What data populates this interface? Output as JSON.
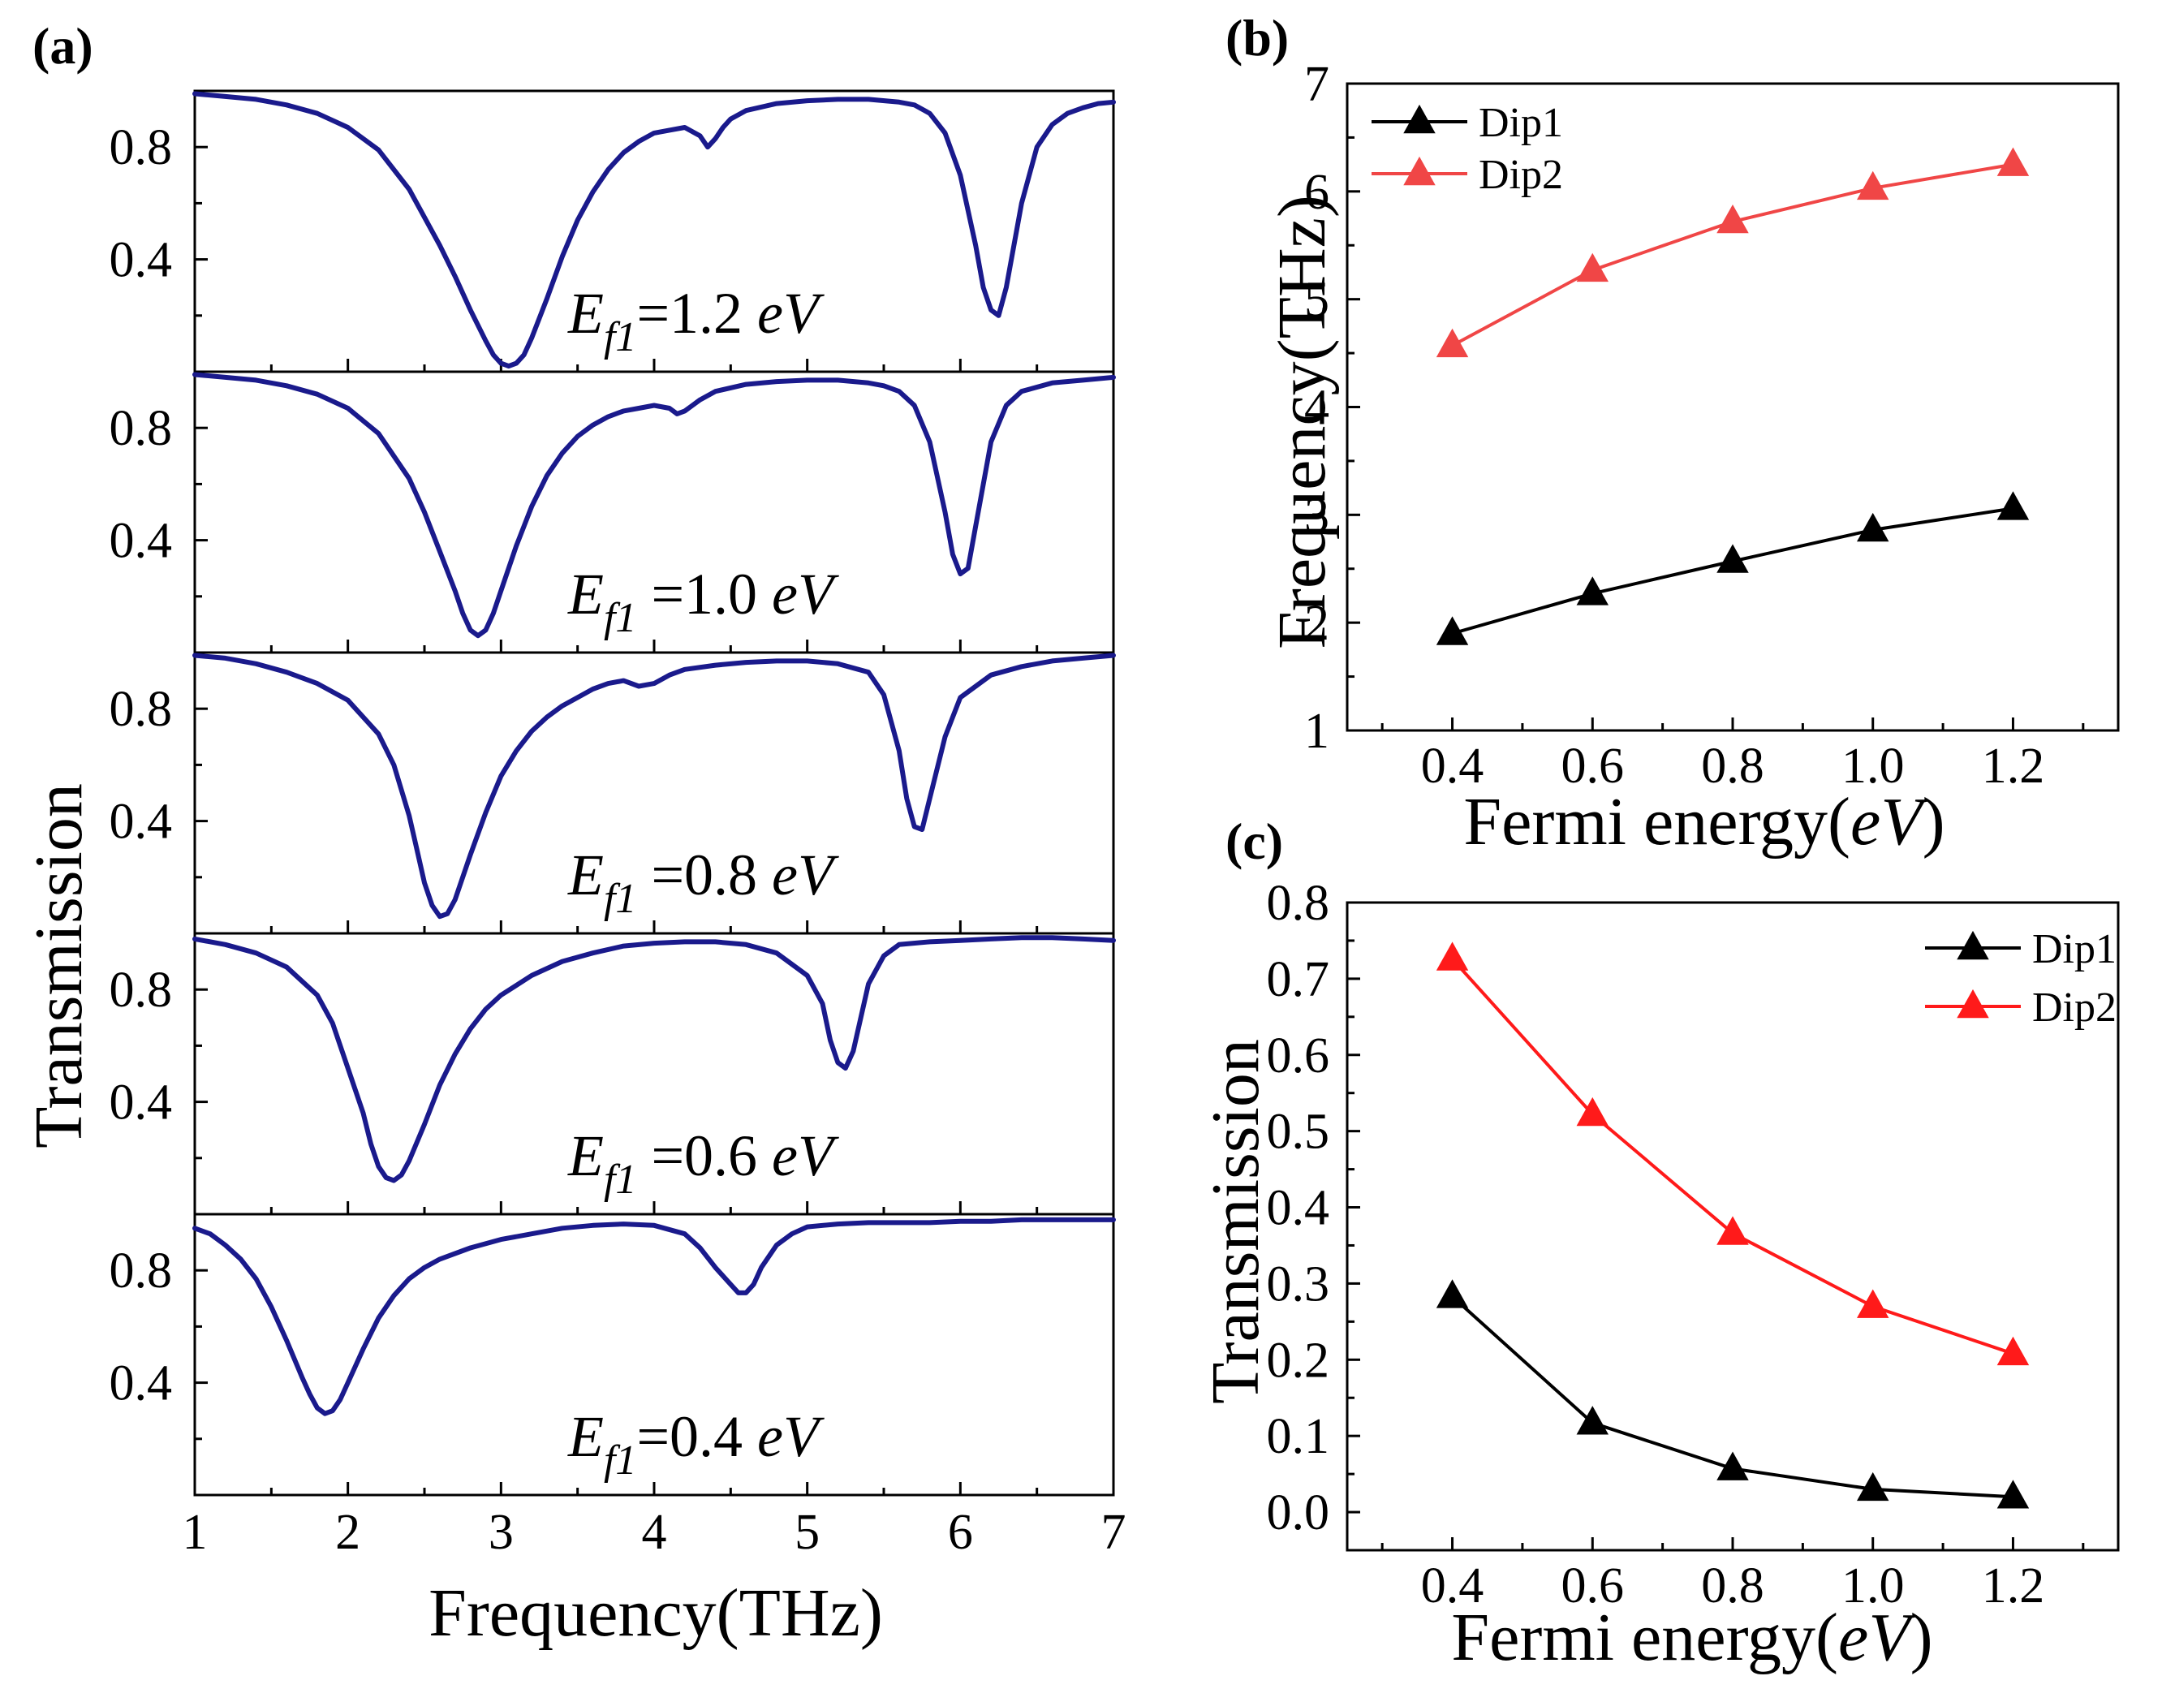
{
  "chart_data": [
    {
      "panel": "(a)",
      "type": "line",
      "xlabel": "Frequency(THz)",
      "ylabel": "Transmission",
      "xlim": [
        1,
        7
      ],
      "xticks": [
        "1",
        "2",
        "3",
        "4",
        "5",
        "6",
        "7"
      ],
      "ylim": [
        0,
        1
      ],
      "ytick_values": [
        0.4,
        0.8
      ],
      "ytick_labels": [
        "0.4",
        "0.8"
      ],
      "color": "#1a1a8c",
      "subplots": [
        {
          "annotation": {
            "symbol": "E",
            "sub": "f1",
            "text": "=1.2 ",
            "unit": "eV"
          },
          "x": [
            1.0,
            1.2,
            1.4,
            1.6,
            1.8,
            2.0,
            2.2,
            2.4,
            2.6,
            2.7,
            2.8,
            2.9,
            2.95,
            3.0,
            3.05,
            3.1,
            3.15,
            3.2,
            3.3,
            3.4,
            3.5,
            3.6,
            3.7,
            3.8,
            3.9,
            4.0,
            4.1,
            4.2,
            4.3,
            4.35,
            4.4,
            4.45,
            4.5,
            4.6,
            4.8,
            5.0,
            5.2,
            5.4,
            5.6,
            5.7,
            5.8,
            5.9,
            6.0,
            6.1,
            6.15,
            6.2,
            6.25,
            6.3,
            6.4,
            6.5,
            6.6,
            6.7,
            6.8,
            6.9,
            7.0
          ],
          "y": [
            0.99,
            0.98,
            0.97,
            0.95,
            0.92,
            0.87,
            0.79,
            0.65,
            0.45,
            0.34,
            0.22,
            0.11,
            0.06,
            0.03,
            0.02,
            0.03,
            0.06,
            0.12,
            0.26,
            0.41,
            0.54,
            0.64,
            0.72,
            0.78,
            0.82,
            0.85,
            0.86,
            0.87,
            0.84,
            0.8,
            0.83,
            0.87,
            0.9,
            0.93,
            0.955,
            0.965,
            0.97,
            0.97,
            0.96,
            0.95,
            0.92,
            0.85,
            0.7,
            0.45,
            0.3,
            0.22,
            0.2,
            0.3,
            0.6,
            0.8,
            0.88,
            0.92,
            0.94,
            0.955,
            0.96
          ]
        },
        {
          "annotation": {
            "symbol": "E",
            "sub": "f1",
            "text": " =1.0 ",
            "unit": "eV"
          },
          "x": [
            1.0,
            1.2,
            1.4,
            1.6,
            1.8,
            2.0,
            2.2,
            2.4,
            2.5,
            2.6,
            2.7,
            2.75,
            2.8,
            2.85,
            2.9,
            2.95,
            3.0,
            3.1,
            3.2,
            3.3,
            3.4,
            3.5,
            3.6,
            3.7,
            3.8,
            3.9,
            4.0,
            4.1,
            4.15,
            4.2,
            4.25,
            4.3,
            4.4,
            4.6,
            4.8,
            5.0,
            5.2,
            5.4,
            5.5,
            5.6,
            5.7,
            5.8,
            5.9,
            5.95,
            6.0,
            6.05,
            6.1,
            6.2,
            6.3,
            6.4,
            6.6,
            6.8,
            7.0
          ],
          "y": [
            0.99,
            0.98,
            0.97,
            0.95,
            0.92,
            0.87,
            0.78,
            0.62,
            0.5,
            0.36,
            0.22,
            0.14,
            0.08,
            0.06,
            0.08,
            0.14,
            0.22,
            0.38,
            0.52,
            0.63,
            0.71,
            0.77,
            0.81,
            0.84,
            0.86,
            0.87,
            0.88,
            0.87,
            0.85,
            0.86,
            0.88,
            0.9,
            0.93,
            0.955,
            0.965,
            0.97,
            0.97,
            0.96,
            0.95,
            0.93,
            0.88,
            0.75,
            0.5,
            0.35,
            0.28,
            0.3,
            0.45,
            0.75,
            0.88,
            0.93,
            0.96,
            0.97,
            0.98
          ]
        },
        {
          "annotation": {
            "symbol": "E",
            "sub": "f1",
            "text": " =0.8 ",
            "unit": "eV"
          },
          "x": [
            1.0,
            1.2,
            1.4,
            1.6,
            1.8,
            2.0,
            2.2,
            2.3,
            2.4,
            2.45,
            2.5,
            2.55,
            2.6,
            2.65,
            2.7,
            2.8,
            2.9,
            3.0,
            3.1,
            3.2,
            3.3,
            3.4,
            3.5,
            3.6,
            3.7,
            3.8,
            3.9,
            4.0,
            4.1,
            4.2,
            4.4,
            4.6,
            4.8,
            5.0,
            5.2,
            5.4,
            5.5,
            5.6,
            5.65,
            5.7,
            5.75,
            5.8,
            5.9,
            6.0,
            6.2,
            6.4,
            6.6,
            6.8,
            7.0
          ],
          "y": [
            0.99,
            0.98,
            0.96,
            0.93,
            0.89,
            0.83,
            0.71,
            0.6,
            0.42,
            0.3,
            0.18,
            0.1,
            0.06,
            0.07,
            0.12,
            0.28,
            0.43,
            0.56,
            0.65,
            0.72,
            0.77,
            0.81,
            0.84,
            0.87,
            0.89,
            0.9,
            0.88,
            0.89,
            0.92,
            0.94,
            0.955,
            0.965,
            0.97,
            0.97,
            0.96,
            0.93,
            0.85,
            0.65,
            0.48,
            0.38,
            0.37,
            0.48,
            0.7,
            0.84,
            0.92,
            0.95,
            0.97,
            0.98,
            0.99
          ]
        },
        {
          "annotation": {
            "symbol": "E",
            "sub": "f1",
            "text": " =0.6 ",
            "unit": "eV"
          },
          "x": [
            1.0,
            1.2,
            1.4,
            1.6,
            1.8,
            1.9,
            2.0,
            2.1,
            2.15,
            2.2,
            2.25,
            2.3,
            2.35,
            2.4,
            2.5,
            2.6,
            2.7,
            2.8,
            2.9,
            3.0,
            3.2,
            3.4,
            3.6,
            3.8,
            4.0,
            4.2,
            4.4,
            4.6,
            4.8,
            5.0,
            5.1,
            5.15,
            5.2,
            5.25,
            5.3,
            5.35,
            5.4,
            5.5,
            5.6,
            5.8,
            6.0,
            6.2,
            6.4,
            6.6,
            6.8,
            7.0
          ],
          "y": [
            0.98,
            0.96,
            0.93,
            0.88,
            0.78,
            0.68,
            0.52,
            0.36,
            0.25,
            0.17,
            0.13,
            0.12,
            0.14,
            0.19,
            0.32,
            0.46,
            0.57,
            0.66,
            0.73,
            0.78,
            0.85,
            0.9,
            0.93,
            0.955,
            0.965,
            0.97,
            0.97,
            0.96,
            0.93,
            0.85,
            0.75,
            0.62,
            0.54,
            0.52,
            0.58,
            0.7,
            0.82,
            0.92,
            0.96,
            0.97,
            0.975,
            0.98,
            0.985,
            0.985,
            0.98,
            0.975
          ]
        },
        {
          "annotation": {
            "symbol": "E",
            "sub": "f1",
            "text": "=0.4 ",
            "unit": "eV"
          },
          "x": [
            1.0,
            1.1,
            1.2,
            1.3,
            1.4,
            1.5,
            1.6,
            1.7,
            1.75,
            1.8,
            1.85,
            1.9,
            1.95,
            2.0,
            2.1,
            2.2,
            2.3,
            2.4,
            2.5,
            2.6,
            2.8,
            3.0,
            3.2,
            3.4,
            3.6,
            3.8,
            4.0,
            4.2,
            4.3,
            4.4,
            4.5,
            4.55,
            4.6,
            4.65,
            4.7,
            4.8,
            4.9,
            5.0,
            5.2,
            5.4,
            5.6,
            5.8,
            6.0,
            6.2,
            6.4,
            6.6,
            6.8,
            7.0
          ],
          "y": [
            0.95,
            0.93,
            0.89,
            0.84,
            0.77,
            0.67,
            0.55,
            0.42,
            0.36,
            0.31,
            0.29,
            0.3,
            0.34,
            0.4,
            0.52,
            0.63,
            0.71,
            0.77,
            0.81,
            0.84,
            0.88,
            0.91,
            0.93,
            0.95,
            0.96,
            0.965,
            0.96,
            0.93,
            0.88,
            0.81,
            0.75,
            0.72,
            0.72,
            0.75,
            0.81,
            0.89,
            0.93,
            0.955,
            0.965,
            0.97,
            0.97,
            0.97,
            0.975,
            0.975,
            0.98,
            0.98,
            0.98,
            0.98
          ]
        }
      ]
    },
    {
      "panel": "(b)",
      "type": "line",
      "xlabel": "Fermi energy(",
      "xlabel_unit": "eV",
      "xlabel_close": ")",
      "ylabel": "Frequency(THz)",
      "xlim": [
        0.25,
        1.35
      ],
      "ylim": [
        1,
        7
      ],
      "xticks": [
        "0.4",
        "0.6",
        "0.8",
        "1.0",
        "1.2"
      ],
      "xtick_values": [
        0.4,
        0.6,
        0.8,
        1.0,
        1.2
      ],
      "yticks": [
        "1",
        "2",
        "3",
        "4",
        "5",
        "6",
        "7"
      ],
      "ytick_values": [
        1,
        2,
        3,
        4,
        5,
        6,
        7
      ],
      "legend_position": "top-left",
      "series": [
        {
          "name": "Dip1",
          "color": "#000000",
          "x": [
            0.4,
            0.6,
            0.8,
            1.0,
            1.2
          ],
          "values": [
            1.9,
            2.27,
            2.57,
            2.86,
            3.06
          ]
        },
        {
          "name": "Dip2",
          "color": "#f04646",
          "x": [
            0.4,
            0.6,
            0.8,
            1.0,
            1.2
          ],
          "values": [
            4.57,
            5.27,
            5.72,
            6.03,
            6.25
          ]
        }
      ]
    },
    {
      "panel": "(c)",
      "type": "line",
      "xlabel": "Fermi energy(",
      "xlabel_unit": "eV",
      "xlabel_close": ")",
      "ylabel": "Transmission",
      "xlim": [
        0.25,
        1.35
      ],
      "ylim": [
        -0.05,
        0.8
      ],
      "xticks": [
        "0.4",
        "0.6",
        "0.8",
        "1.0",
        "1.2"
      ],
      "xtick_values": [
        0.4,
        0.6,
        0.8,
        1.0,
        1.2
      ],
      "yticks": [
        "0.0",
        "0.1",
        "0.2",
        "0.3",
        "0.4",
        "0.5",
        "0.6",
        "0.7",
        "0.8"
      ],
      "ytick_values": [
        0.0,
        0.1,
        0.2,
        0.3,
        0.4,
        0.5,
        0.6,
        0.7,
        0.8
      ],
      "legend_position": "top-right",
      "series": [
        {
          "name": "Dip1",
          "color": "#000000",
          "x": [
            0.4,
            0.6,
            0.8,
            1.0,
            1.2
          ],
          "values": [
            0.283,
            0.117,
            0.057,
            0.03,
            0.02
          ]
        },
        {
          "name": "Dip2",
          "color": "#ff1a1a",
          "x": [
            0.4,
            0.6,
            0.8,
            1.0,
            1.2
          ],
          "values": [
            0.726,
            0.522,
            0.366,
            0.27,
            0.208
          ]
        }
      ]
    }
  ]
}
